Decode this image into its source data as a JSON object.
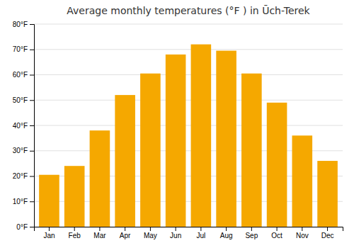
{
  "chart_data": {
    "type": "bar",
    "title": "Average monthly temperatures (°F ) in Ūch-Terek",
    "categories": [
      "Jan",
      "Feb",
      "Mar",
      "Apr",
      "May",
      "Jun",
      "Jul",
      "Aug",
      "Sep",
      "Oct",
      "Nov",
      "Dec"
    ],
    "values": [
      20.5,
      24,
      38,
      52,
      60.5,
      68,
      72,
      69.5,
      60.5,
      49,
      36,
      26
    ],
    "color": "#F5A800",
    "ylim": [
      0,
      80
    ],
    "yticks": [
      {
        "value": 0,
        "label": "0°F"
      },
      {
        "value": 10,
        "label": "10°F"
      },
      {
        "value": 20,
        "label": "20°F"
      },
      {
        "value": 30,
        "label": "30°F"
      },
      {
        "value": 40,
        "label": "40°F"
      },
      {
        "value": 50,
        "label": "50°F"
      },
      {
        "value": 60,
        "label": "60°F"
      },
      {
        "value": 70,
        "label": "70°F"
      },
      {
        "value": 80,
        "label": "80°F"
      }
    ],
    "grid": true
  }
}
